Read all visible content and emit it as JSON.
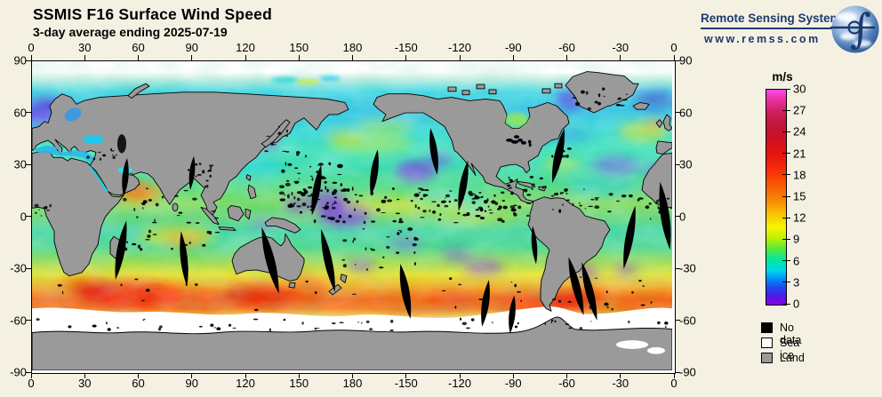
{
  "header": {
    "title": "SSMIS F16 Surface Wind Speed",
    "subtitle": "3-day average ending 2025-07-19"
  },
  "logo": {
    "name": "Remote Sensing Systems",
    "url": "www.remss.com"
  },
  "axes": {
    "lon_ticks": [
      "0",
      "30",
      "60",
      "90",
      "120",
      "150",
      "180",
      "-150",
      "-120",
      "-90",
      "-60",
      "-30",
      "0"
    ],
    "lat_ticks": [
      "90",
      "60",
      "30",
      "0",
      "-30",
      "-60",
      "-90"
    ]
  },
  "colorbar": {
    "unit": "m/s",
    "tick_labels": [
      "30",
      "27",
      "24",
      "21",
      "18",
      "15",
      "12",
      "9",
      "6",
      "3",
      "0"
    ],
    "max": 30,
    "min": 0,
    "gradient_top_to_bottom": [
      "#ff4ae8",
      "#d02060",
      "#c01838",
      "#e81410",
      "#f85c04",
      "#f8c404",
      "#f8f400",
      "#58e83c",
      "#00d8e8",
      "#2048f0",
      "#8800e0"
    ]
  },
  "legend": {
    "items": [
      {
        "label": "No data",
        "color": "#000000"
      },
      {
        "label": "Sea ice",
        "color": "#ffffff"
      },
      {
        "label": "Land",
        "color": "#9a9a9a"
      }
    ]
  },
  "colors": {
    "background": "#f5f1e2",
    "land": "#9a9a9a",
    "frame": "#000000",
    "logo_navy": "#1b3a70"
  }
}
